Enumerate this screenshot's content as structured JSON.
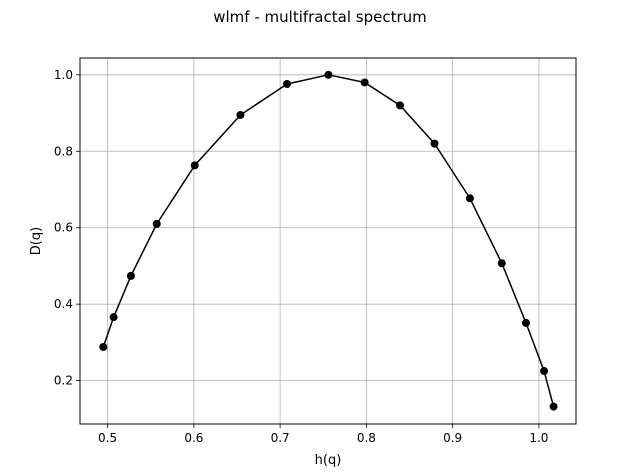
{
  "chart_data": {
    "type": "line",
    "title": "wlmf - multifractal spectrum",
    "xlabel": "h(q)",
    "ylabel": "D(q)",
    "xlim": [
      0.468,
      1.043
    ],
    "ylim": [
      0.0865,
      1.044
    ],
    "x_ticks": [
      0.5,
      0.6,
      0.7,
      0.8,
      0.9,
      1.0
    ],
    "y_ticks": [
      0.2,
      0.4,
      0.6,
      0.8,
      1.0
    ],
    "grid": true,
    "legend": "none",
    "series": [
      {
        "color": "#000000",
        "marker": "circle",
        "points": [
          {
            "x": 0.495,
            "y": 0.288
          },
          {
            "x": 0.507,
            "y": 0.366
          },
          {
            "x": 0.527,
            "y": 0.474
          },
          {
            "x": 0.557,
            "y": 0.61
          },
          {
            "x": 0.601,
            "y": 0.763
          },
          {
            "x": 0.654,
            "y": 0.895
          },
          {
            "x": 0.708,
            "y": 0.976
          },
          {
            "x": 0.756,
            "y": 1.0
          },
          {
            "x": 0.798,
            "y": 0.98
          },
          {
            "x": 0.839,
            "y": 0.92
          },
          {
            "x": 0.879,
            "y": 0.82
          },
          {
            "x": 0.92,
            "y": 0.677
          },
          {
            "x": 0.957,
            "y": 0.507
          },
          {
            "x": 0.985,
            "y": 0.351
          },
          {
            "x": 1.006,
            "y": 0.225
          },
          {
            "x": 1.017,
            "y": 0.132
          }
        ]
      }
    ]
  }
}
